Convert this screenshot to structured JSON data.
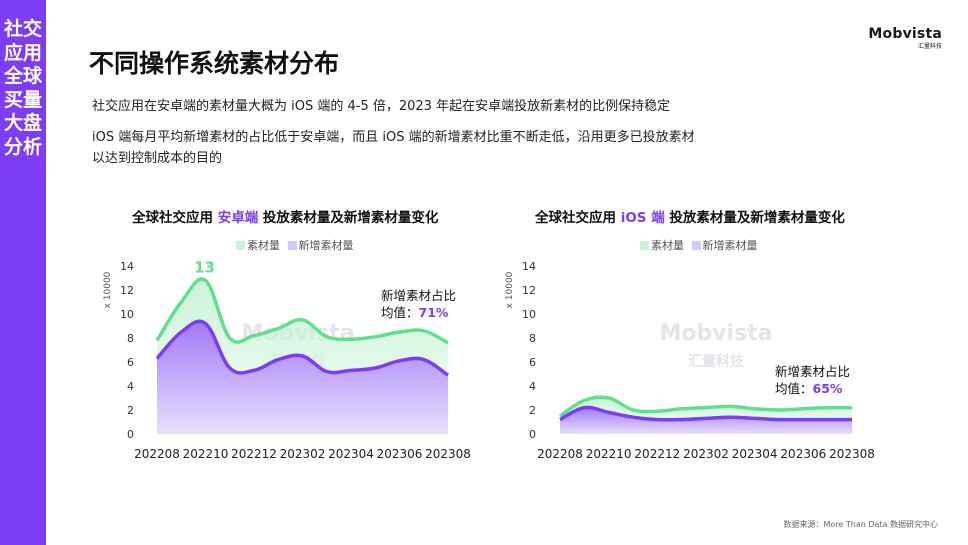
{
  "sidebar": {
    "text": "社交应用全球买量大盘分析"
  },
  "logo": {
    "name": "Mobvista",
    "sub": "汇量科技"
  },
  "page": {
    "title": "不同操作系统素材分布",
    "bullets": [
      "社交应用在安卓端的素材量大概为 iOS 端的 4-5 倍，2023 年起在安卓端投放新素材的比例保持稳定",
      "iOS 端每月平均新增素材的占比低于安卓端，而且 iOS 端的新增素材比重不断走低，沿用更多已投放素材",
      "以达到控制成本的目的"
    ],
    "source": "数据来源：More Than Data 数据研究中心"
  },
  "colors": {
    "sidebar": "#7d3cf5",
    "accent": "#7d3cf5",
    "total_series": "#5fe08c",
    "new_series": "#7d3cf5"
  },
  "chart_data": [
    {
      "type": "area",
      "title_prefix": "全球社交应用 ",
      "title_highlight": "安卓端",
      "title_suffix": " 投放素材量及新增素材量变化",
      "unit_label": "x 10000",
      "ylim": [
        0,
        14
      ],
      "yticks": [
        0,
        2,
        4,
        6,
        8,
        10,
        12,
        14
      ],
      "x": [
        "202208",
        "202209",
        "202210",
        "202211",
        "202212",
        "202301",
        "202302",
        "202303",
        "202304",
        "202305",
        "202306",
        "202307",
        "202308"
      ],
      "x_tick_labels": [
        "202208",
        "202210",
        "202212",
        "202302",
        "202304",
        "202306",
        "202308"
      ],
      "series": [
        {
          "name": "素材量",
          "values": [
            7.8,
            11.0,
            12.8,
            8.0,
            8.2,
            8.8,
            9.5,
            8.1,
            7.9,
            8.1,
            8.5,
            8.6,
            7.6
          ]
        },
        {
          "name": "新增素材量",
          "values": [
            6.3,
            8.5,
            9.2,
            5.5,
            5.3,
            6.2,
            6.5,
            5.2,
            5.3,
            5.5,
            6.1,
            6.2,
            4.9
          ]
        }
      ],
      "peak_label": "13",
      "annotation": {
        "line1": "新增素材占比",
        "prefix": "均值：",
        "value": "71%"
      },
      "legend_position": "top-center",
      "grid": false
    },
    {
      "type": "area",
      "title_prefix": "全球社交应用 ",
      "title_highlight": "iOS 端",
      "title_suffix": " 投放素材量及新增素材量变化",
      "unit_label": "x 10000",
      "ylim": [
        0,
        14
      ],
      "yticks": [
        0,
        2,
        4,
        6,
        8,
        10,
        12,
        14
      ],
      "x": [
        "202208",
        "202209",
        "202210",
        "202211",
        "202212",
        "202301",
        "202302",
        "202303",
        "202304",
        "202305",
        "202306",
        "202307",
        "202308"
      ],
      "x_tick_labels": [
        "202208",
        "202210",
        "202212",
        "202302",
        "202304",
        "202306",
        "202308"
      ],
      "series": [
        {
          "name": "素材量",
          "values": [
            1.5,
            2.8,
            3.0,
            2.0,
            1.9,
            2.1,
            2.2,
            2.3,
            2.1,
            2.0,
            2.1,
            2.2,
            2.2
          ]
        },
        {
          "name": "新增素材量",
          "values": [
            1.2,
            2.2,
            1.8,
            1.4,
            1.2,
            1.2,
            1.3,
            1.4,
            1.3,
            1.2,
            1.2,
            1.2,
            1.2
          ]
        }
      ],
      "annotation": {
        "line1": "新增素材占比",
        "prefix": "均值：",
        "value": "65%"
      },
      "legend_position": "top-center",
      "grid": false
    }
  ]
}
